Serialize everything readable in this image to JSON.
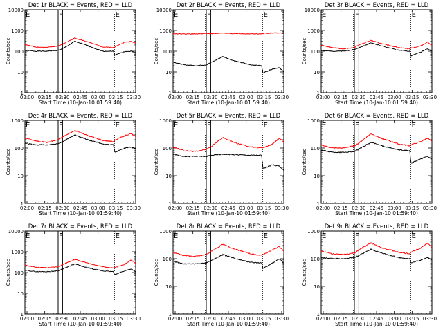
{
  "figure": {
    "xlabel": "Start Time (10-Jan-10 01:59:40)",
    "ylabel": "Counts/sec",
    "x_tick_labels": [
      "02:00",
      "02:15",
      "02:30",
      "02:45",
      "03:00",
      "03:15",
      "03:30"
    ],
    "y_tick_labels": [
      "1",
      "10",
      "100",
      "1000",
      "10000"
    ],
    "colors": {
      "events": "#000000",
      "lld": "#ff0000",
      "axes": "#000000"
    }
  },
  "chart_data": [
    {
      "type": "line",
      "title": "Det 1r BLACK = Events, RED = LLD",
      "yscale": "log",
      "xlim": [
        0,
        100
      ],
      "ylim": [
        1,
        10000
      ],
      "markers": [
        {
          "label": "E",
          "x": 0
        },
        {
          "label": "F",
          "x": 30
        },
        {
          "label": "E",
          "x": 81
        }
      ],
      "dotted_x": [
        29,
        81
      ],
      "solid_x": [
        30,
        34
      ],
      "series": [
        {
          "name": "Events",
          "color": "#000000",
          "x": [
            0,
            10,
            20,
            30,
            34,
            45,
            55,
            70,
            80,
            81,
            90,
            96,
            100
          ],
          "y": [
            110,
            100,
            100,
            110,
            130,
            300,
            200,
            100,
            100,
            65,
            95,
            100,
            80
          ]
        },
        {
          "name": "LLD",
          "color": "#ff0000",
          "x": [
            0,
            10,
            20,
            30,
            34,
            45,
            55,
            70,
            80,
            81,
            90,
            96,
            100
          ],
          "y": [
            210,
            160,
            150,
            180,
            220,
            430,
            300,
            160,
            150,
            160,
            270,
            300,
            240
          ]
        }
      ]
    },
    {
      "type": "line",
      "title": "Det 2r BLACK = Events, RED = LLD",
      "yscale": "log",
      "xlim": [
        0,
        100
      ],
      "ylim": [
        1,
        10000
      ],
      "markers": [
        {
          "label": "E",
          "x": 0
        },
        {
          "label": "F",
          "x": 30
        },
        {
          "label": "E",
          "x": 81
        }
      ],
      "dotted_x": [
        29,
        81
      ],
      "solid_x": [
        30,
        34
      ],
      "series": [
        {
          "name": "Events",
          "color": "#000000",
          "x": [
            0,
            10,
            20,
            30,
            34,
            45,
            55,
            70,
            80,
            81,
            90,
            96,
            100
          ],
          "y": [
            30,
            22,
            20,
            22,
            28,
            55,
            35,
            22,
            20,
            9,
            14,
            16,
            10
          ]
        },
        {
          "name": "LLD",
          "color": "#ff0000",
          "x": [
            0,
            10,
            20,
            30,
            34,
            45,
            55,
            70,
            80,
            81,
            90,
            96,
            100
          ],
          "y": [
            700,
            680,
            690,
            700,
            700,
            740,
            720,
            690,
            700,
            720,
            760,
            770,
            740
          ]
        }
      ]
    },
    {
      "type": "line",
      "title": "Det 3r BLACK = Events, RED = LLD",
      "yscale": "log",
      "xlim": [
        0,
        100
      ],
      "ylim": [
        1,
        10000
      ],
      "markers": [
        {
          "label": "E",
          "x": 0
        },
        {
          "label": "F",
          "x": 30
        },
        {
          "label": "E",
          "x": 81
        }
      ],
      "dotted_x": [
        29,
        81
      ],
      "solid_x": [
        30,
        34
      ],
      "series": [
        {
          "name": "Events",
          "color": "#000000",
          "x": [
            0,
            10,
            20,
            30,
            34,
            45,
            55,
            70,
            80,
            81,
            90,
            96,
            100
          ],
          "y": [
            110,
            100,
            100,
            120,
            150,
            250,
            180,
            110,
            100,
            60,
            90,
            130,
            100
          ]
        },
        {
          "name": "LLD",
          "color": "#ff0000",
          "x": [
            0,
            10,
            20,
            30,
            34,
            45,
            55,
            70,
            80,
            81,
            90,
            96,
            100
          ],
          "y": [
            200,
            150,
            130,
            150,
            200,
            330,
            230,
            150,
            130,
            140,
            180,
            280,
            200
          ]
        }
      ]
    },
    {
      "type": "line",
      "title": "Det 4r BLACK = Events, RED = LLD",
      "yscale": "log",
      "xlim": [
        0,
        100
      ],
      "ylim": [
        1,
        1000
      ],
      "markers": [
        {
          "label": "E",
          "x": 0
        },
        {
          "label": "F",
          "x": 30
        },
        {
          "label": "E",
          "x": 81
        }
      ],
      "dotted_x": [
        29,
        81
      ],
      "solid_x": [
        30,
        34
      ],
      "series": [
        {
          "name": "Events",
          "color": "#000000",
          "x": [
            0,
            10,
            20,
            30,
            34,
            45,
            55,
            70,
            80,
            81,
            90,
            96,
            100
          ],
          "y": [
            150,
            130,
            130,
            140,
            170,
            300,
            210,
            140,
            130,
            70,
            100,
            110,
            90
          ]
        },
        {
          "name": "LLD",
          "color": "#ff0000",
          "x": [
            0,
            10,
            20,
            30,
            34,
            45,
            55,
            70,
            80,
            81,
            90,
            96,
            100
          ],
          "y": [
            230,
            180,
            160,
            200,
            250,
            430,
            300,
            190,
            170,
            190,
            280,
            330,
            260
          ]
        }
      ]
    },
    {
      "type": "line",
      "title": "Det 5r BLACK = Events, RED = LLD",
      "yscale": "log",
      "xlim": [
        0,
        100
      ],
      "ylim": [
        1,
        1000
      ],
      "markers": [
        {
          "label": "E",
          "x": 0
        },
        {
          "label": "F",
          "x": 30
        },
        {
          "label": "E",
          "x": 81
        }
      ],
      "dotted_x": [
        29,
        81
      ],
      "solid_x": [
        30,
        34
      ],
      "series": [
        {
          "name": "Events",
          "color": "#000000",
          "x": [
            0,
            10,
            20,
            30,
            34,
            45,
            55,
            70,
            80,
            81,
            90,
            96,
            100
          ],
          "y": [
            60,
            50,
            50,
            50,
            55,
            60,
            58,
            55,
            55,
            18,
            25,
            22,
            15
          ]
        },
        {
          "name": "LLD",
          "color": "#ff0000",
          "x": [
            0,
            10,
            20,
            30,
            34,
            45,
            55,
            70,
            80,
            81,
            90,
            96,
            100
          ],
          "y": [
            110,
            80,
            75,
            90,
            110,
            240,
            160,
            110,
            100,
            100,
            140,
            230,
            160
          ]
        }
      ]
    },
    {
      "type": "line",
      "title": "Det 6r BLACK = Events, RED = LLD",
      "yscale": "log",
      "xlim": [
        0,
        100
      ],
      "ylim": [
        1,
        1000
      ],
      "markers": [
        {
          "label": "E",
          "x": 0
        },
        {
          "label": "F",
          "x": 30
        },
        {
          "label": "E",
          "x": 81
        }
      ],
      "dotted_x": [
        29,
        81
      ],
      "solid_x": [
        30,
        34
      ],
      "series": [
        {
          "name": "Events",
          "color": "#000000",
          "x": [
            0,
            10,
            20,
            30,
            34,
            45,
            55,
            70,
            80,
            81,
            90,
            96,
            100
          ],
          "y": [
            85,
            70,
            70,
            75,
            90,
            160,
            120,
            85,
            80,
            28,
            40,
            50,
            40
          ]
        },
        {
          "name": "LLD",
          "color": "#ff0000",
          "x": [
            0,
            10,
            20,
            30,
            34,
            45,
            55,
            70,
            80,
            81,
            90,
            96,
            100
          ],
          "y": [
            130,
            100,
            100,
            120,
            150,
            330,
            220,
            140,
            120,
            130,
            170,
            230,
            170
          ]
        }
      ]
    },
    {
      "type": "line",
      "title": "Det 7r BLACK = Events, RED = LLD",
      "yscale": "log",
      "xlim": [
        0,
        100
      ],
      "ylim": [
        1,
        10000
      ],
      "markers": [
        {
          "label": "E",
          "x": 0
        },
        {
          "label": "F",
          "x": 30
        },
        {
          "label": "E",
          "x": 81
        }
      ],
      "dotted_x": [
        29,
        81
      ],
      "solid_x": [
        30,
        34
      ],
      "series": [
        {
          "name": "Events",
          "color": "#000000",
          "x": [
            0,
            10,
            20,
            30,
            34,
            45,
            55,
            70,
            80,
            81,
            90,
            96,
            100
          ],
          "y": [
            130,
            110,
            110,
            120,
            150,
            260,
            180,
            120,
            110,
            80,
            120,
            150,
            110
          ]
        },
        {
          "name": "LLD",
          "color": "#ff0000",
          "x": [
            0,
            10,
            20,
            30,
            34,
            45,
            55,
            70,
            80,
            81,
            90,
            96,
            100
          ],
          "y": [
            230,
            180,
            170,
            190,
            240,
            430,
            300,
            190,
            170,
            170,
            250,
            400,
            280
          ]
        }
      ]
    },
    {
      "type": "line",
      "title": "Det 8r BLACK = Events, RED = LLD",
      "yscale": "log",
      "xlim": [
        0,
        100
      ],
      "ylim": [
        1,
        1000
      ],
      "markers": [
        {
          "label": "E",
          "x": 0
        },
        {
          "label": "F",
          "x": 30
        },
        {
          "label": "E",
          "x": 81
        }
      ],
      "dotted_x": [
        29,
        81
      ],
      "solid_x": [
        30,
        34
      ],
      "series": [
        {
          "name": "Events",
          "color": "#000000",
          "x": [
            0,
            10,
            20,
            30,
            34,
            45,
            55,
            70,
            80,
            81,
            90,
            96,
            100
          ],
          "y": [
            80,
            65,
            65,
            70,
            85,
            140,
            105,
            75,
            70,
            45,
            70,
            100,
            70
          ]
        },
        {
          "name": "LLD",
          "color": "#ff0000",
          "x": [
            0,
            10,
            20,
            30,
            34,
            45,
            55,
            70,
            80,
            81,
            90,
            96,
            100
          ],
          "y": [
            170,
            130,
            120,
            140,
            180,
            330,
            230,
            150,
            130,
            140,
            210,
            280,
            190
          ]
        }
      ]
    },
    {
      "type": "line",
      "title": "Det 9r BLACK = Events, RED = LLD",
      "yscale": "log",
      "xlim": [
        0,
        100
      ],
      "ylim": [
        1,
        1000
      ],
      "markers": [
        {
          "label": "E",
          "x": 0
        },
        {
          "label": "F",
          "x": 30
        },
        {
          "label": "E",
          "x": 81
        }
      ],
      "dotted_x": [
        29,
        81
      ],
      "solid_x": [
        30,
        34
      ],
      "series": [
        {
          "name": "Events",
          "color": "#000000",
          "x": [
            0,
            10,
            20,
            30,
            34,
            45,
            55,
            70,
            80,
            81,
            90,
            96,
            100
          ],
          "y": [
            110,
            100,
            100,
            110,
            130,
            220,
            160,
            110,
            100,
            70,
            90,
            110,
            90
          ]
        },
        {
          "name": "LLD",
          "color": "#ff0000",
          "x": [
            0,
            10,
            20,
            30,
            34,
            45,
            55,
            70,
            80,
            81,
            90,
            96,
            100
          ],
          "y": [
            190,
            150,
            140,
            160,
            210,
            370,
            250,
            170,
            150,
            170,
            250,
            370,
            250
          ]
        }
      ]
    }
  ]
}
